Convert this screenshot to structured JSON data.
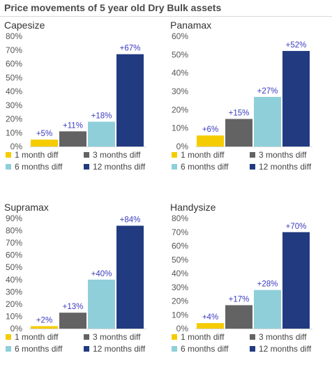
{
  "title": "Price movements of 5 year old Dry Bulk assets",
  "colors": {
    "series": [
      "#f5cc00",
      "#636363",
      "#8ecfda",
      "#213a80"
    ],
    "label": "#3b3bbf",
    "grid": "#d9d9d9"
  },
  "chart_data": [
    {
      "type": "bar",
      "title": "Capesize",
      "categories": [
        "1 month diff",
        "3 months diff",
        "6 months diff",
        "12 months diff"
      ],
      "values": [
        5,
        11,
        18,
        67
      ],
      "labels": [
        "+5%",
        "+11%",
        "+18%",
        "+67%"
      ],
      "ylim": [
        0,
        80
      ],
      "ystep": 10,
      "grid": false,
      "legend_position": "bottom"
    },
    {
      "type": "bar",
      "title": "Panamax",
      "categories": [
        "1 month diff",
        "3 months diff",
        "6 months diff",
        "12 months diff"
      ],
      "values": [
        6,
        15,
        27,
        52
      ],
      "labels": [
        "+6%",
        "+15%",
        "+27%",
        "+52%"
      ],
      "ylim": [
        0,
        60
      ],
      "ystep": 10,
      "grid": false,
      "legend_position": "bottom"
    },
    {
      "type": "bar",
      "title": "Supramax",
      "categories": [
        "1 month diff",
        "3 months diff",
        "6 months diff",
        "12 months diff"
      ],
      "values": [
        2,
        13,
        40,
        84
      ],
      "labels": [
        "+2%",
        "+13%",
        "+40%",
        "+84%"
      ],
      "ylim": [
        0,
        90
      ],
      "ystep": 10,
      "grid": false,
      "legend_position": "bottom"
    },
    {
      "type": "bar",
      "title": "Handysize",
      "categories": [
        "1 month diff",
        "3 months diff",
        "6 months diff",
        "12 months diff"
      ],
      "values": [
        4,
        17,
        28,
        70
      ],
      "labels": [
        "+4%",
        "+17%",
        "+28%",
        "+70%"
      ],
      "ylim": [
        0,
        80
      ],
      "ystep": 10,
      "grid": false,
      "legend_position": "bottom"
    }
  ]
}
